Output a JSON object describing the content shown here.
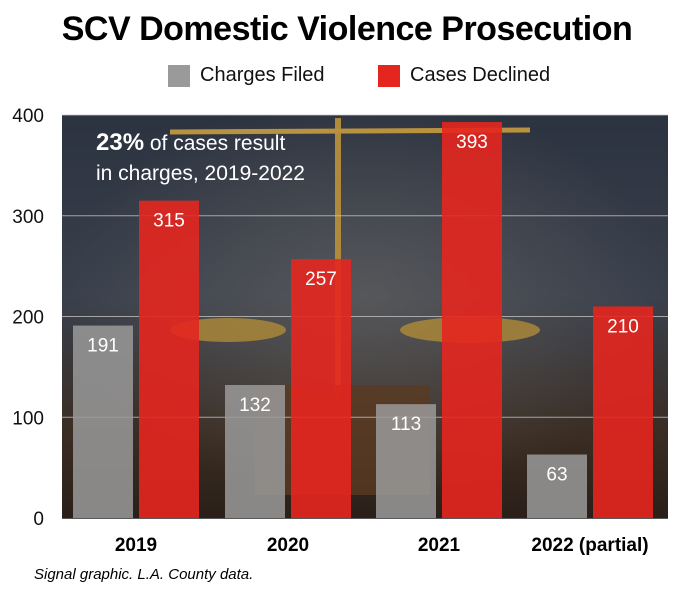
{
  "chart_data": {
    "type": "bar",
    "title": "SCV Domestic Violence Prosecution",
    "categories": [
      "2019",
      "2020",
      "2021",
      "2022 (partial)"
    ],
    "series": [
      {
        "name": "Charges Filed",
        "values": [
          191,
          132,
          113,
          63
        ],
        "color": "#9a9a9a"
      },
      {
        "name": "Cases Declined",
        "values": [
          315,
          257,
          393,
          210
        ],
        "color": "#e5261f"
      }
    ],
    "ylim": [
      0,
      400
    ],
    "yticks": [
      0,
      100,
      200,
      300,
      400
    ],
    "grid": true,
    "legend_position": "top",
    "annotation": {
      "bold": "23%",
      "line1_rest": " of cases result",
      "line2": "in charges, 2019-2022"
    },
    "source": "Signal graphic. L.A. County data."
  }
}
